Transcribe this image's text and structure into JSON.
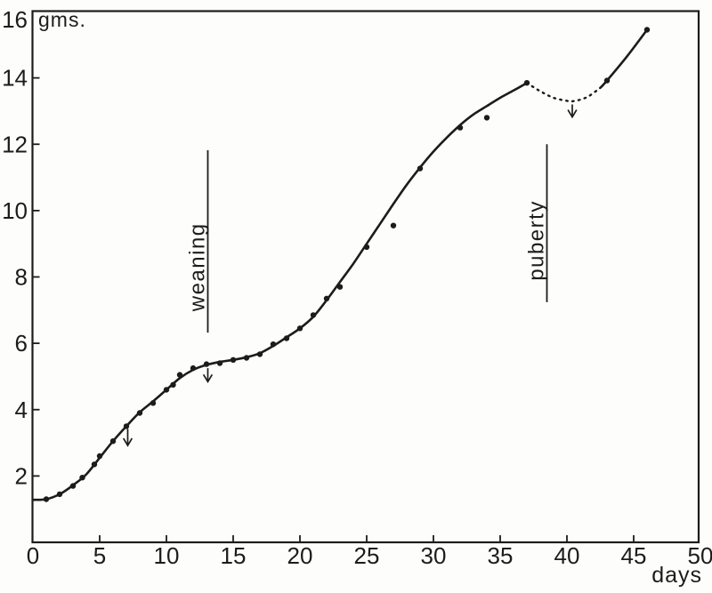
{
  "labels": {
    "y_unit": "gms.",
    "x_unit": "days"
  },
  "chart_data": {
    "type": "line",
    "title": "",
    "xlabel": "days",
    "ylabel": "gms.",
    "xlim": [
      0,
      50
    ],
    "ylim": [
      0,
      16
    ],
    "grid": false,
    "x_ticks": [
      0,
      5,
      10,
      15,
      20,
      25,
      30,
      35,
      40,
      45,
      50
    ],
    "y_ticks": [
      2,
      4,
      6,
      8,
      10,
      12,
      14,
      16
    ],
    "points": [
      [
        1,
        1.3
      ],
      [
        2,
        1.45
      ],
      [
        3,
        1.7
      ],
      [
        3.7,
        1.95
      ],
      [
        4.6,
        2.35
      ],
      [
        5,
        2.6
      ],
      [
        6,
        3.05
      ],
      [
        7,
        3.5
      ],
      [
        8,
        3.9
      ],
      [
        9,
        4.2
      ],
      [
        10,
        4.6
      ],
      [
        10.5,
        4.75
      ],
      [
        11,
        5.05
      ],
      [
        12,
        5.25
      ],
      [
        13,
        5.37
      ],
      [
        14,
        5.4
      ],
      [
        15,
        5.5
      ],
      [
        16,
        5.56
      ],
      [
        17,
        5.67
      ],
      [
        18,
        5.97
      ],
      [
        19,
        6.15
      ],
      [
        20,
        6.45
      ],
      [
        21,
        6.85
      ],
      [
        22,
        7.35
      ],
      [
        23,
        7.7
      ],
      [
        25,
        8.9
      ],
      [
        27,
        9.55
      ],
      [
        29,
        11.27
      ],
      [
        32,
        12.5
      ],
      [
        34,
        12.8
      ],
      [
        37,
        13.85
      ],
      [
        43,
        13.92
      ],
      [
        46,
        15.45
      ]
    ],
    "curve": {
      "solid_main": [
        [
          0,
          1.28
        ],
        [
          1,
          1.3
        ],
        [
          2,
          1.45
        ],
        [
          3,
          1.72
        ],
        [
          4,
          2.05
        ],
        [
          5,
          2.55
        ],
        [
          6,
          3.05
        ],
        [
          7,
          3.5
        ],
        [
          8,
          3.92
        ],
        [
          9,
          4.25
        ],
        [
          10,
          4.6
        ],
        [
          11,
          4.95
        ],
        [
          12,
          5.2
        ],
        [
          13,
          5.35
        ],
        [
          14,
          5.44
        ],
        [
          15,
          5.5
        ],
        [
          16,
          5.58
        ],
        [
          17,
          5.7
        ],
        [
          18,
          5.92
        ],
        [
          19,
          6.18
        ],
        [
          20,
          6.45
        ],
        [
          21,
          6.8
        ],
        [
          22,
          7.3
        ],
        [
          23,
          7.85
        ],
        [
          24,
          8.4
        ],
        [
          25,
          9.0
        ],
        [
          26,
          9.6
        ],
        [
          27,
          10.2
        ],
        [
          28,
          10.78
        ],
        [
          29,
          11.3
        ],
        [
          30,
          11.78
        ],
        [
          31,
          12.2
        ],
        [
          32,
          12.58
        ],
        [
          33,
          12.9
        ],
        [
          34,
          13.15
        ],
        [
          35,
          13.4
        ],
        [
          36,
          13.62
        ],
        [
          37,
          13.85
        ]
      ],
      "dotted_dip": [
        [
          37,
          13.85
        ],
        [
          38,
          13.6
        ],
        [
          39,
          13.4
        ],
        [
          40,
          13.31
        ],
        [
          40.5,
          13.3
        ],
        [
          41.5,
          13.42
        ],
        [
          42.5,
          13.7
        ]
      ],
      "solid_final": [
        [
          42.5,
          13.7
        ],
        [
          43,
          13.92
        ],
        [
          44.5,
          14.65
        ],
        [
          46,
          15.45
        ]
      ]
    },
    "events": [
      {
        "label": "weaning",
        "day": 13.1,
        "g_bottom": 6.32,
        "g_top": 11.82,
        "label_g_center": 8.3
      },
      {
        "label": "puberty",
        "day": 38.5,
        "g_bottom": 7.24,
        "g_top": 12.0,
        "label_g_center": 9.1
      }
    ],
    "arrows": [
      {
        "day": 7.1,
        "g_top": 3.42,
        "g_tip": 2.92
      },
      {
        "day": 13.1,
        "g_top": 5.25,
        "g_tip": 4.84
      },
      {
        "day": 40.4,
        "g_top": 13.2,
        "g_tip": 12.82
      }
    ],
    "colors": {
      "ink": "#1c1c1c",
      "paper": "#fdfdfb"
    }
  }
}
